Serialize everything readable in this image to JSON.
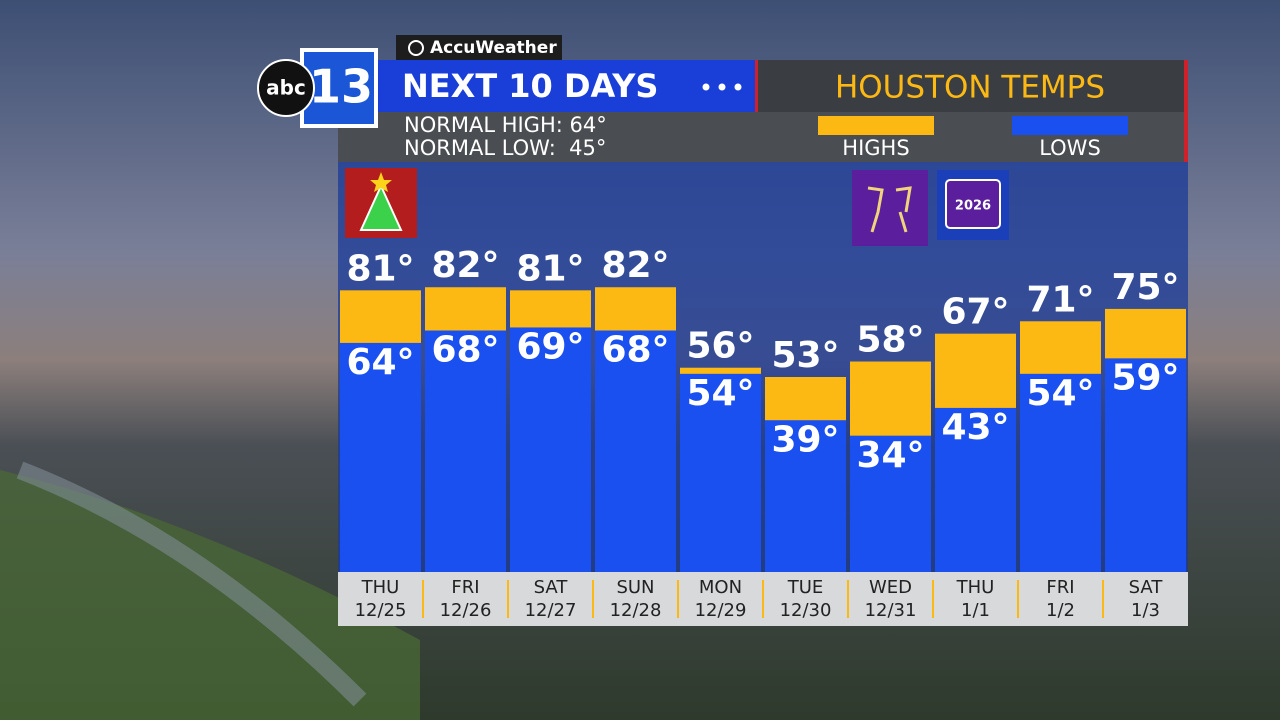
{
  "branding": {
    "provider": "AccuWeather",
    "network": "abc",
    "channel": "13",
    "calendar_year": "2026"
  },
  "chart_data": {
    "type": "range-bar",
    "title": "NEXT 10 DAYS",
    "subtitle": "HOUSTON TEMPS",
    "annotations": [
      "NORMAL HIGH: 64°",
      "NORMAL LOW:  45°"
    ],
    "categories": [
      "THU",
      "FRI",
      "SAT",
      "SUN",
      "MON",
      "TUE",
      "WED",
      "THU",
      "FRI",
      "SAT"
    ],
    "dates": [
      "12/25",
      "12/26",
      "12/27",
      "12/28",
      "12/29",
      "12/30",
      "12/31",
      "1/1",
      "1/2",
      "1/3"
    ],
    "series": [
      {
        "name": "HIGHS",
        "color": "#fdb913",
        "values": [
          81,
          82,
          81,
          82,
          56,
          53,
          58,
          67,
          71,
          75
        ],
        "value_labels": [
          "81°",
          "82°",
          "81°",
          "82°",
          "56°",
          "53°",
          "58°",
          "67°",
          "71°",
          "75°"
        ]
      },
      {
        "name": "LOWS",
        "color": "#1a4ff0",
        "values": [
          64,
          68,
          69,
          68,
          54,
          39,
          34,
          43,
          54,
          59
        ],
        "value_labels": [
          "64°",
          "68°",
          "69°",
          "68°",
          "54°",
          "39°",
          "34°",
          "43°",
          "54°",
          "59°"
        ]
      }
    ],
    "ylim": [
      -10,
      95
    ]
  }
}
